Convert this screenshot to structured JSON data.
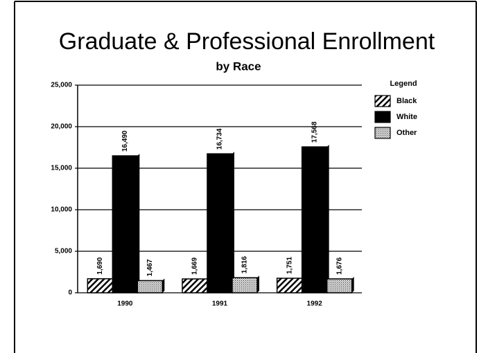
{
  "chart_data": {
    "type": "bar",
    "title": "Graduate & Professional Enrollment",
    "subtitle": "by Race",
    "categories": [
      "1990",
      "1991",
      "1992"
    ],
    "series": [
      {
        "name": "Black",
        "color": "#000000",
        "pattern": "hatch",
        "values": [
          1690,
          1669,
          1751
        ],
        "value_labels": [
          "1,690",
          "1,669",
          "1,751"
        ]
      },
      {
        "name": "White",
        "color": "#000000",
        "pattern": "solid",
        "values": [
          16490,
          16734,
          17568
        ],
        "value_labels": [
          "16,490",
          "16,734",
          "17,568"
        ]
      },
      {
        "name": "Other",
        "color": "#000000",
        "pattern": "dots",
        "values": [
          1467,
          1816,
          1676
        ],
        "value_labels": [
          "1,467",
          "1,816",
          "1,676"
        ]
      }
    ],
    "ylim": [
      0,
      25000
    ],
    "yticks": [
      0,
      {
        "value": 5000,
        "label": "5,000"
      },
      {
        "value": 10000,
        "label": "10,000"
      },
      {
        "value": 15000,
        "label": "15,000"
      },
      {
        "value": 20000,
        "label": "20,000"
      },
      {
        "value": 25000,
        "label": "25,000"
      }
    ],
    "grid": true,
    "legend_title": "Legend",
    "legend": "right"
  }
}
